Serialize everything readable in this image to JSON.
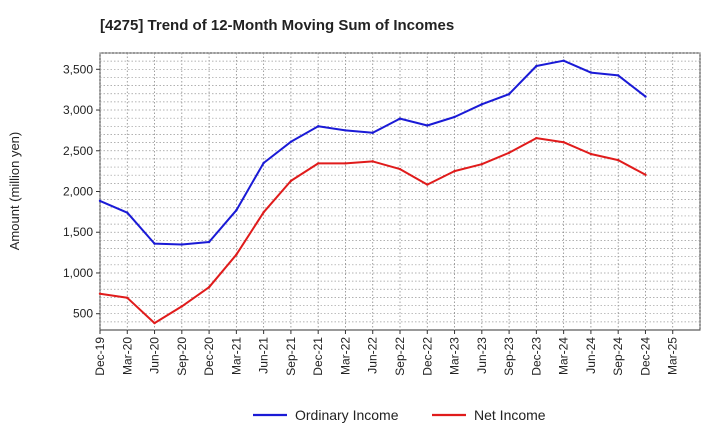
{
  "chart_data": {
    "type": "line",
    "title": "[4275]  Trend of 12-Month Moving Sum of Incomes",
    "xlabel": "",
    "ylabel": "Amount (million yen)",
    "categories": [
      "Dec-19",
      "Mar-20",
      "Jun-20",
      "Sep-20",
      "Dec-20",
      "Mar-21",
      "Jun-21",
      "Sep-21",
      "Dec-21",
      "Mar-22",
      "Jun-22",
      "Sep-22",
      "Dec-22",
      "Mar-23",
      "Jun-23",
      "Sep-23",
      "Dec-23",
      "Mar-24",
      "Jun-24",
      "Sep-24",
      "Dec-24",
      "Mar-25"
    ],
    "ylim": [
      300,
      3700
    ],
    "yticks": [
      500,
      1000,
      1500,
      2000,
      2500,
      3000,
      3500
    ],
    "ytick_labels": [
      "500",
      "1,000",
      "1,500",
      "2,000",
      "2,500",
      "3,000",
      "3,500"
    ],
    "grid": true,
    "legend_position": "bottom",
    "series": [
      {
        "name": "Ordinary Income",
        "color": "#1a1ad6",
        "values": [
          1885,
          1740,
          1360,
          1350,
          1380,
          1770,
          2350,
          2610,
          2800,
          2750,
          2720,
          2895,
          2810,
          2915,
          3070,
          3195,
          3540,
          3605,
          3460,
          3425,
          3165,
          null
        ]
      },
      {
        "name": "Net Income",
        "color": "#e01b1b",
        "values": [
          745,
          695,
          385,
          590,
          825,
          1225,
          1745,
          2130,
          2345,
          2345,
          2370,
          2275,
          2085,
          2250,
          2335,
          2475,
          2655,
          2605,
          2460,
          2385,
          2205,
          null
        ]
      }
    ]
  }
}
